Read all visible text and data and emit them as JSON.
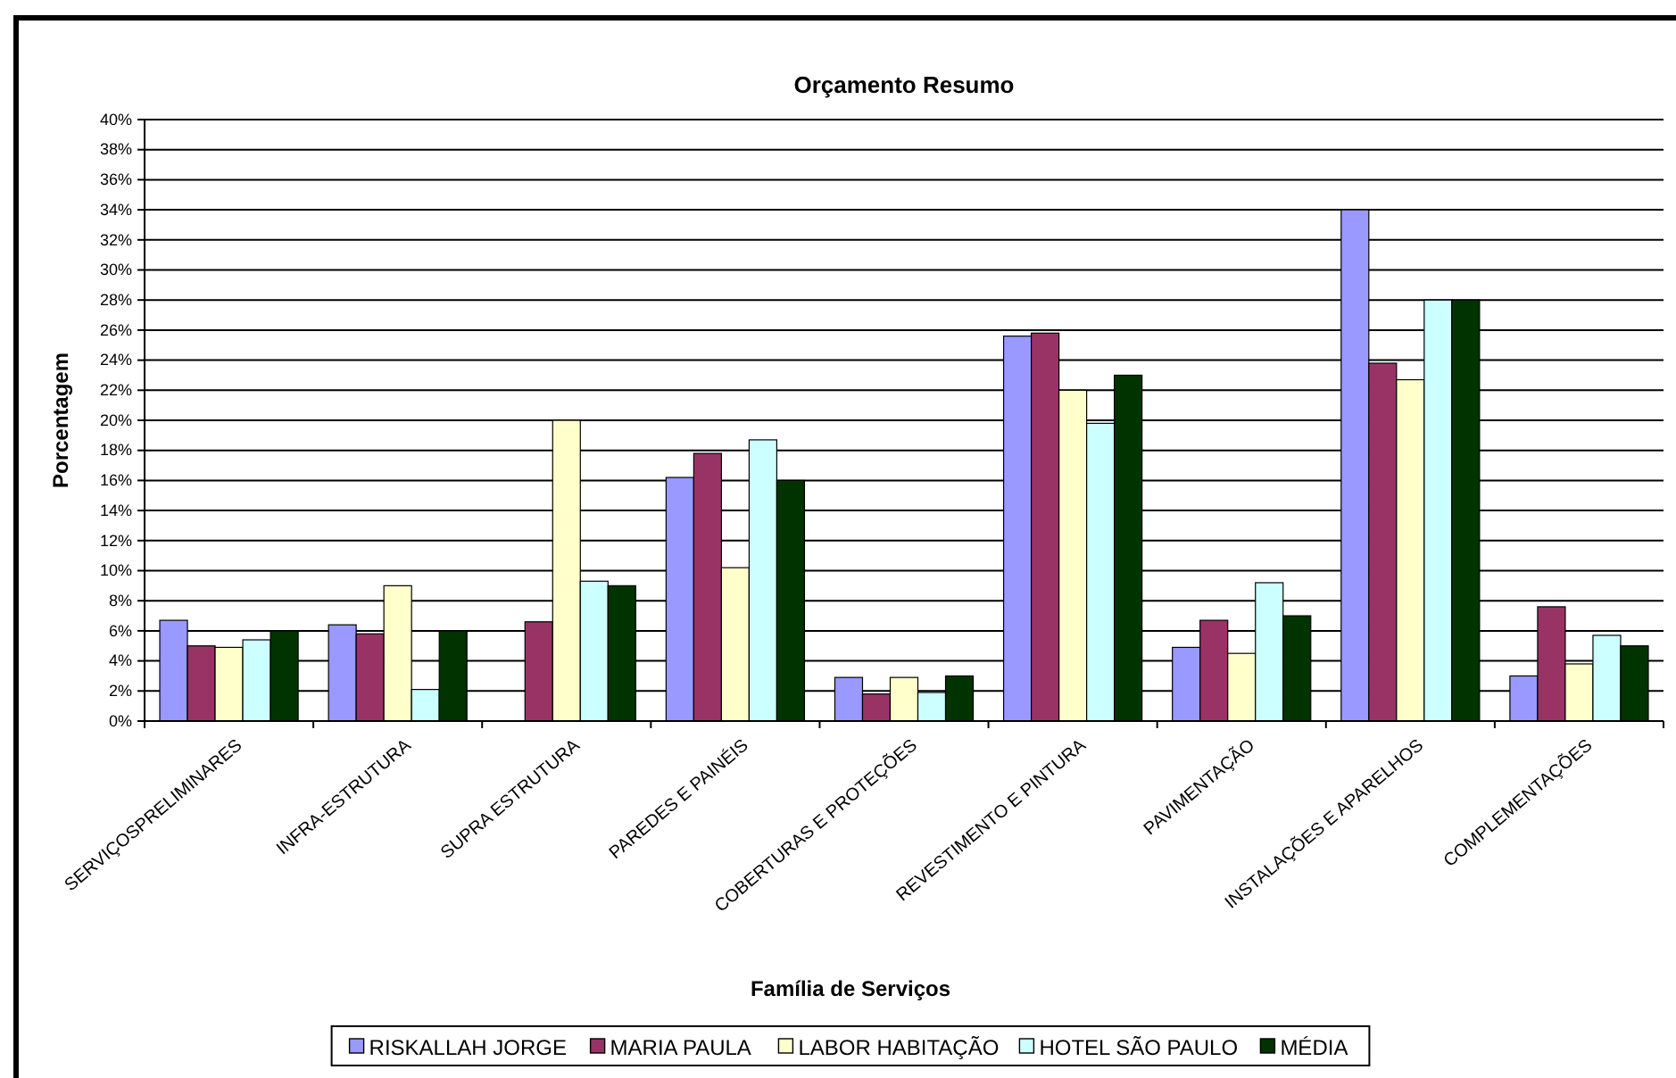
{
  "chart_data": {
    "type": "bar",
    "title": "Orçamento Resumo",
    "xlabel": "Família de Serviços",
    "ylabel": "Porcentagem",
    "categories": [
      "SERVIÇOSPRELIMINARES",
      "INFRA-ESTRUTURA",
      "SUPRA ESTRUTURA",
      "PAREDES E PAINÉIS",
      "COBERTURAS E PROTEÇÕES",
      "REVESTIMENTO E PINTURA",
      "PAVIMENTAÇÃO",
      "INSTALAÇÕES E APARELHOS",
      "COMPLEMENTAÇÕES"
    ],
    "series": [
      {
        "name": "RISKALLAH JORGE",
        "color": "#9999ff",
        "values": [
          6.7,
          6.4,
          null,
          16.2,
          2.9,
          25.6,
          4.9,
          34,
          3.0
        ]
      },
      {
        "name": "MARIA PAULA",
        "color": "#993366",
        "values": [
          5,
          5.8,
          6.6,
          17.8,
          1.8,
          25.8,
          6.7,
          23.8,
          7.6
        ]
      },
      {
        "name": "LABOR HABITAÇÃO",
        "color": "#ffffcc",
        "values": [
          4.9,
          9,
          20,
          10.2,
          2.9,
          22,
          4.5,
          22.7,
          3.8
        ]
      },
      {
        "name": "HOTEL SÃO PAULO",
        "color": "#ccffff",
        "values": [
          5.4,
          2.1,
          9.3,
          18.7,
          1.9,
          19.8,
          9.2,
          28,
          5.7
        ]
      },
      {
        "name": "MÉDIA",
        "color": "#003300",
        "values": [
          6,
          6,
          9,
          16,
          3.0,
          23,
          7,
          28,
          5
        ]
      }
    ],
    "ylim": [
      0,
      40
    ],
    "yticks": [
      {
        "value": 0,
        "label": "0%"
      },
      {
        "value": 2,
        "label": "2%"
      },
      {
        "value": 4,
        "label": "4%"
      },
      {
        "value": 6,
        "label": "6%"
      },
      {
        "value": 8,
        "label": "8%"
      },
      {
        "value": 10,
        "label": "10%"
      },
      {
        "value": 12,
        "label": "12%"
      },
      {
        "value": 14,
        "label": "14%"
      },
      {
        "value": 16,
        "label": "16%"
      },
      {
        "value": 18,
        "label": "18%"
      },
      {
        "value": 20,
        "label": "20%"
      },
      {
        "value": 22,
        "label": "22%"
      },
      {
        "value": 24,
        "label": "24%"
      },
      {
        "value": 26,
        "label": "26%"
      },
      {
        "value": 28,
        "label": "28%"
      },
      {
        "value": 30,
        "label": "30%"
      },
      {
        "value": 32,
        "label": "32%"
      },
      {
        "value": 34,
        "label": "34%"
      },
      {
        "value": 36,
        "label": "36%"
      },
      {
        "value": 38,
        "label": "38%"
      },
      {
        "value": 40,
        "label": "40%"
      }
    ],
    "grid": "y",
    "legend": "bottom"
  }
}
